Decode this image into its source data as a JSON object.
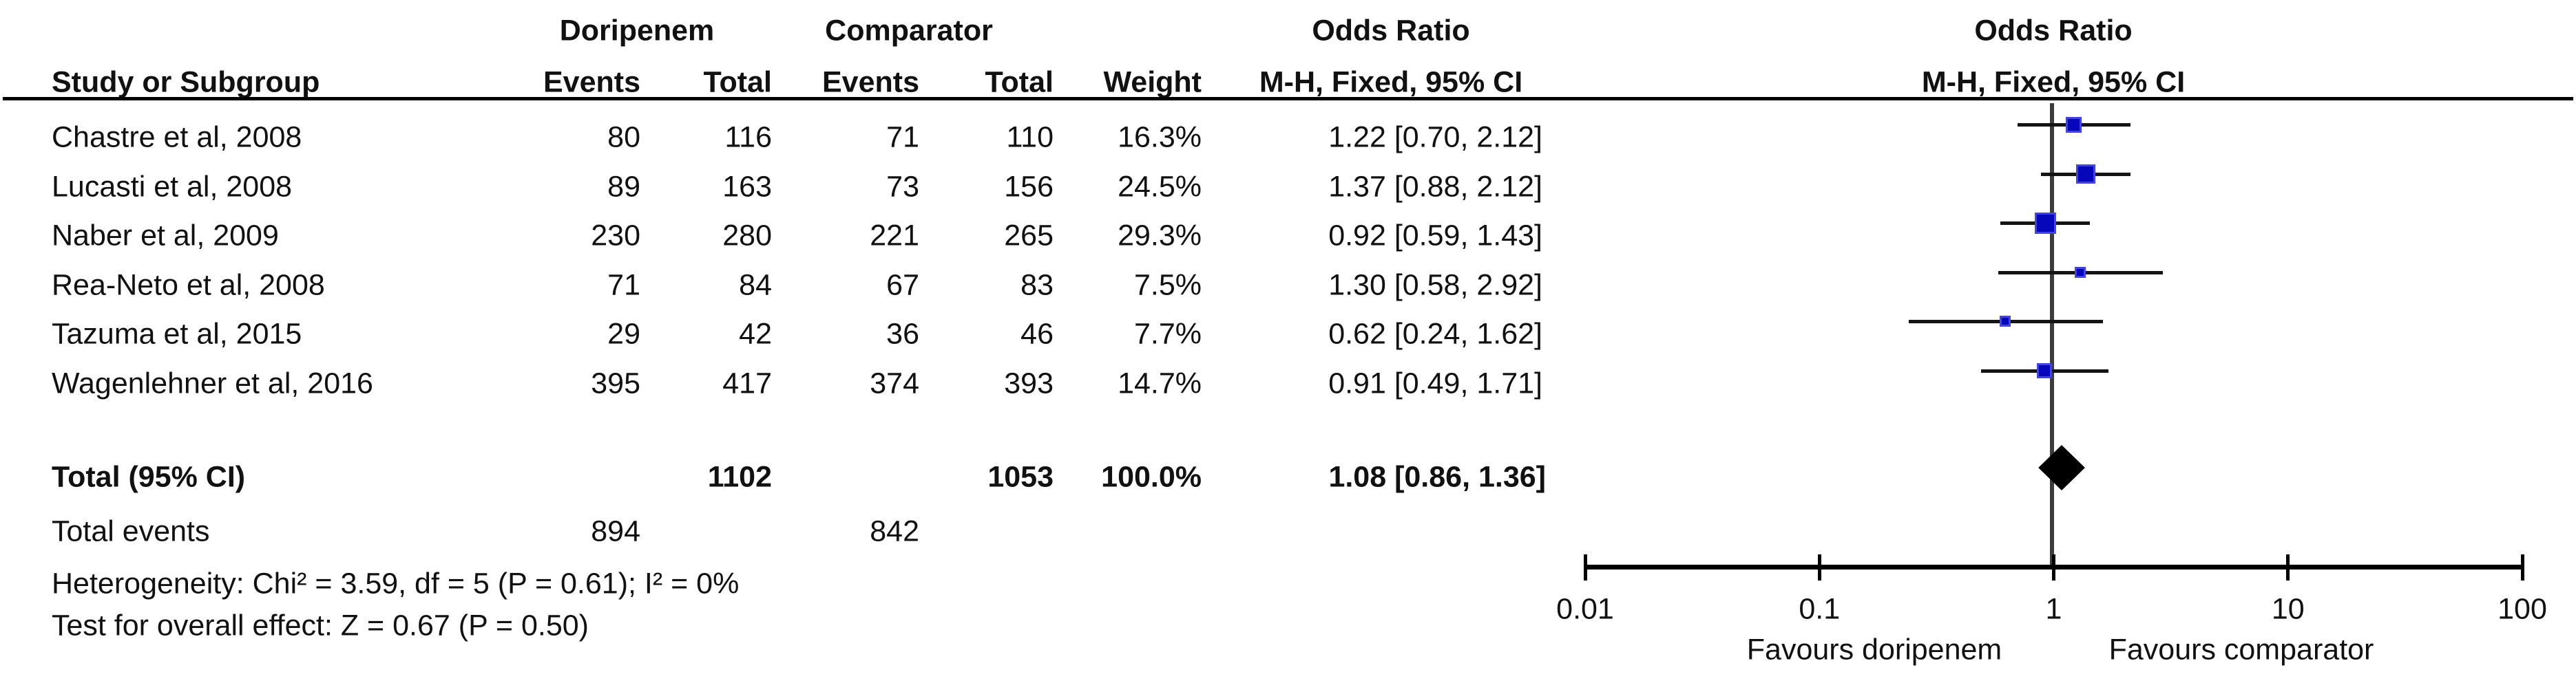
{
  "chart_data": {
    "type": "forest",
    "group1_label": "Doripenem",
    "group2_label": "Comparator",
    "effect_header": "Odds Ratio",
    "method_header": "M-H, Fixed, 95% CI",
    "columns": {
      "study": "Study or Subgroup",
      "events": "Events",
      "total": "Total",
      "weight": "Weight"
    },
    "studies": [
      {
        "name": "Chastre et al, 2008",
        "events_1": 80,
        "total_1": 116,
        "events_2": 71,
        "total_2": 110,
        "weight": "16.3%",
        "weight_value": 16.3,
        "or": 1.22,
        "ci_low": 0.7,
        "ci_high": 2.12,
        "ci_text": "1.22 [0.70, 2.12]"
      },
      {
        "name": "Lucasti et al, 2008",
        "events_1": 89,
        "total_1": 163,
        "events_2": 73,
        "total_2": 156,
        "weight": "24.5%",
        "weight_value": 24.5,
        "or": 1.37,
        "ci_low": 0.88,
        "ci_high": 2.12,
        "ci_text": "1.37 [0.88, 2.12]"
      },
      {
        "name": "Naber et al, 2009",
        "events_1": 230,
        "total_1": 280,
        "events_2": 221,
        "total_2": 265,
        "weight": "29.3%",
        "weight_value": 29.3,
        "or": 0.92,
        "ci_low": 0.59,
        "ci_high": 1.43,
        "ci_text": "0.92 [0.59, 1.43]"
      },
      {
        "name": "Rea-Neto et al, 2008",
        "events_1": 71,
        "total_1": 84,
        "events_2": 67,
        "total_2": 83,
        "weight": "7.5%",
        "weight_value": 7.5,
        "or": 1.3,
        "ci_low": 0.58,
        "ci_high": 2.92,
        "ci_text": "1.30 [0.58, 2.92]"
      },
      {
        "name": "Tazuma et al, 2015",
        "events_1": 29,
        "total_1": 42,
        "events_2": 36,
        "total_2": 46,
        "weight": "7.7%",
        "weight_value": 7.7,
        "or": 0.62,
        "ci_low": 0.24,
        "ci_high": 1.62,
        "ci_text": "0.62 [0.24, 1.62]"
      },
      {
        "name": "Wagenlehner et al, 2016",
        "events_1": 395,
        "total_1": 417,
        "events_2": 374,
        "total_2": 393,
        "weight": "14.7%",
        "weight_value": 14.7,
        "or": 0.91,
        "ci_low": 0.49,
        "ci_high": 1.71,
        "ci_text": "0.91 [0.49, 1.71]"
      }
    ],
    "total": {
      "label": "Total (95% CI)",
      "total_1": 1102,
      "total_2": 1053,
      "weight": "100.0%",
      "or": 1.08,
      "ci_low": 0.86,
      "ci_high": 1.36,
      "ci_text": "1.08 [0.86, 1.36]"
    },
    "total_events": {
      "label": "Total events",
      "events_1": 894,
      "events_2": 842
    },
    "heterogeneity": "Heterogeneity: Chi² = 3.59, df = 5 (P = 0.61); I² = 0%",
    "overall_effect": "Test for overall effect: Z = 0.67 (P = 0.50)",
    "axis": {
      "scale": "log",
      "ticks": [
        "0.01",
        "0.1",
        "1",
        "10",
        "100"
      ],
      "tick_values": [
        0.01,
        0.1,
        1,
        10,
        100
      ],
      "favours_left": "Favours doripenem",
      "favours_right": "Favours comparator"
    },
    "colors": {
      "marker": "#0606BB",
      "marker_border": "#4343DF",
      "diamond": "#000000",
      "ci_line": "#141414",
      "center_line": "#3C3C3C",
      "axis": "#000000"
    }
  }
}
